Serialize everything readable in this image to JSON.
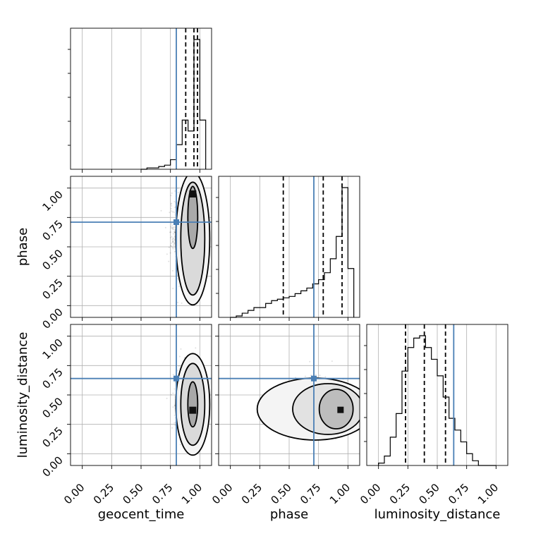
{
  "chart_data": {
    "type": "corner",
    "parameters": [
      "geocent_time",
      "phase",
      "luminosity_distance"
    ],
    "axis_range": [
      -0.1,
      1.1
    ],
    "tick_labels": [
      "0.00",
      "0.25",
      "0.50",
      "0.75",
      "1.00"
    ],
    "tick_values": [
      0,
      0.25,
      0.5,
      0.75,
      1.0
    ],
    "grid": true,
    "truth_color": "#4a7fb5",
    "truths": {
      "geocent_time": 0.8,
      "phase": 0.71,
      "luminosity_distance": 0.64
    },
    "quantiles": {
      "geocent_time": [
        0.88,
        0.95,
        0.98
      ],
      "phase": [
        0.45,
        0.79,
        0.95
      ],
      "luminosity_distance": [
        0.23,
        0.39,
        0.57
      ]
    },
    "histograms": {
      "geocent_time": {
        "edges": [
          0.5,
          0.55,
          0.6,
          0.65,
          0.7,
          0.75,
          0.8,
          0.85,
          0.9,
          0.95,
          1.0,
          1.05
        ],
        "counts": [
          0,
          1,
          1,
          2,
          3,
          7,
          18,
          36,
          28,
          95,
          36
        ]
      },
      "phase": {
        "edges": [
          0.0,
          0.05,
          0.1,
          0.15,
          0.2,
          0.25,
          0.3,
          0.35,
          0.4,
          0.45,
          0.5,
          0.55,
          0.6,
          0.65,
          0.7,
          0.75,
          0.8,
          0.85,
          0.9,
          0.95,
          1.0,
          1.05
        ],
        "counts": [
          0,
          1,
          3,
          5,
          7,
          7,
          10,
          12,
          13,
          14,
          15,
          17,
          19,
          21,
          24,
          27,
          32,
          42,
          58,
          93,
          35
        ]
      },
      "luminosity_distance": {
        "edges": [
          0.0,
          0.05,
          0.1,
          0.15,
          0.2,
          0.25,
          0.3,
          0.35,
          0.4,
          0.45,
          0.5,
          0.55,
          0.6,
          0.65,
          0.7,
          0.75,
          0.8,
          0.85,
          0.9,
          0.95,
          1.0
        ],
        "counts": [
          1,
          4,
          12,
          22,
          40,
          50,
          54,
          55,
          50,
          45,
          38,
          29,
          20,
          15,
          10,
          5,
          2,
          0,
          0,
          0
        ]
      }
    },
    "scatter": {
      "phase_vs_geocent_time": {
        "x_center": 0.88,
        "x_spread": 0.1,
        "y_center": 0.6,
        "y_spread": 0.3
      },
      "luminosity_distance_vs_geocent_time": {
        "x_center": 0.9,
        "x_spread": 0.08,
        "y_center": 0.45,
        "y_spread": 0.22
      },
      "luminosity_distance_vs_phase": {
        "x_center": 0.75,
        "x_spread": 0.22,
        "y_center": 0.42,
        "y_spread": 0.16
      }
    }
  }
}
